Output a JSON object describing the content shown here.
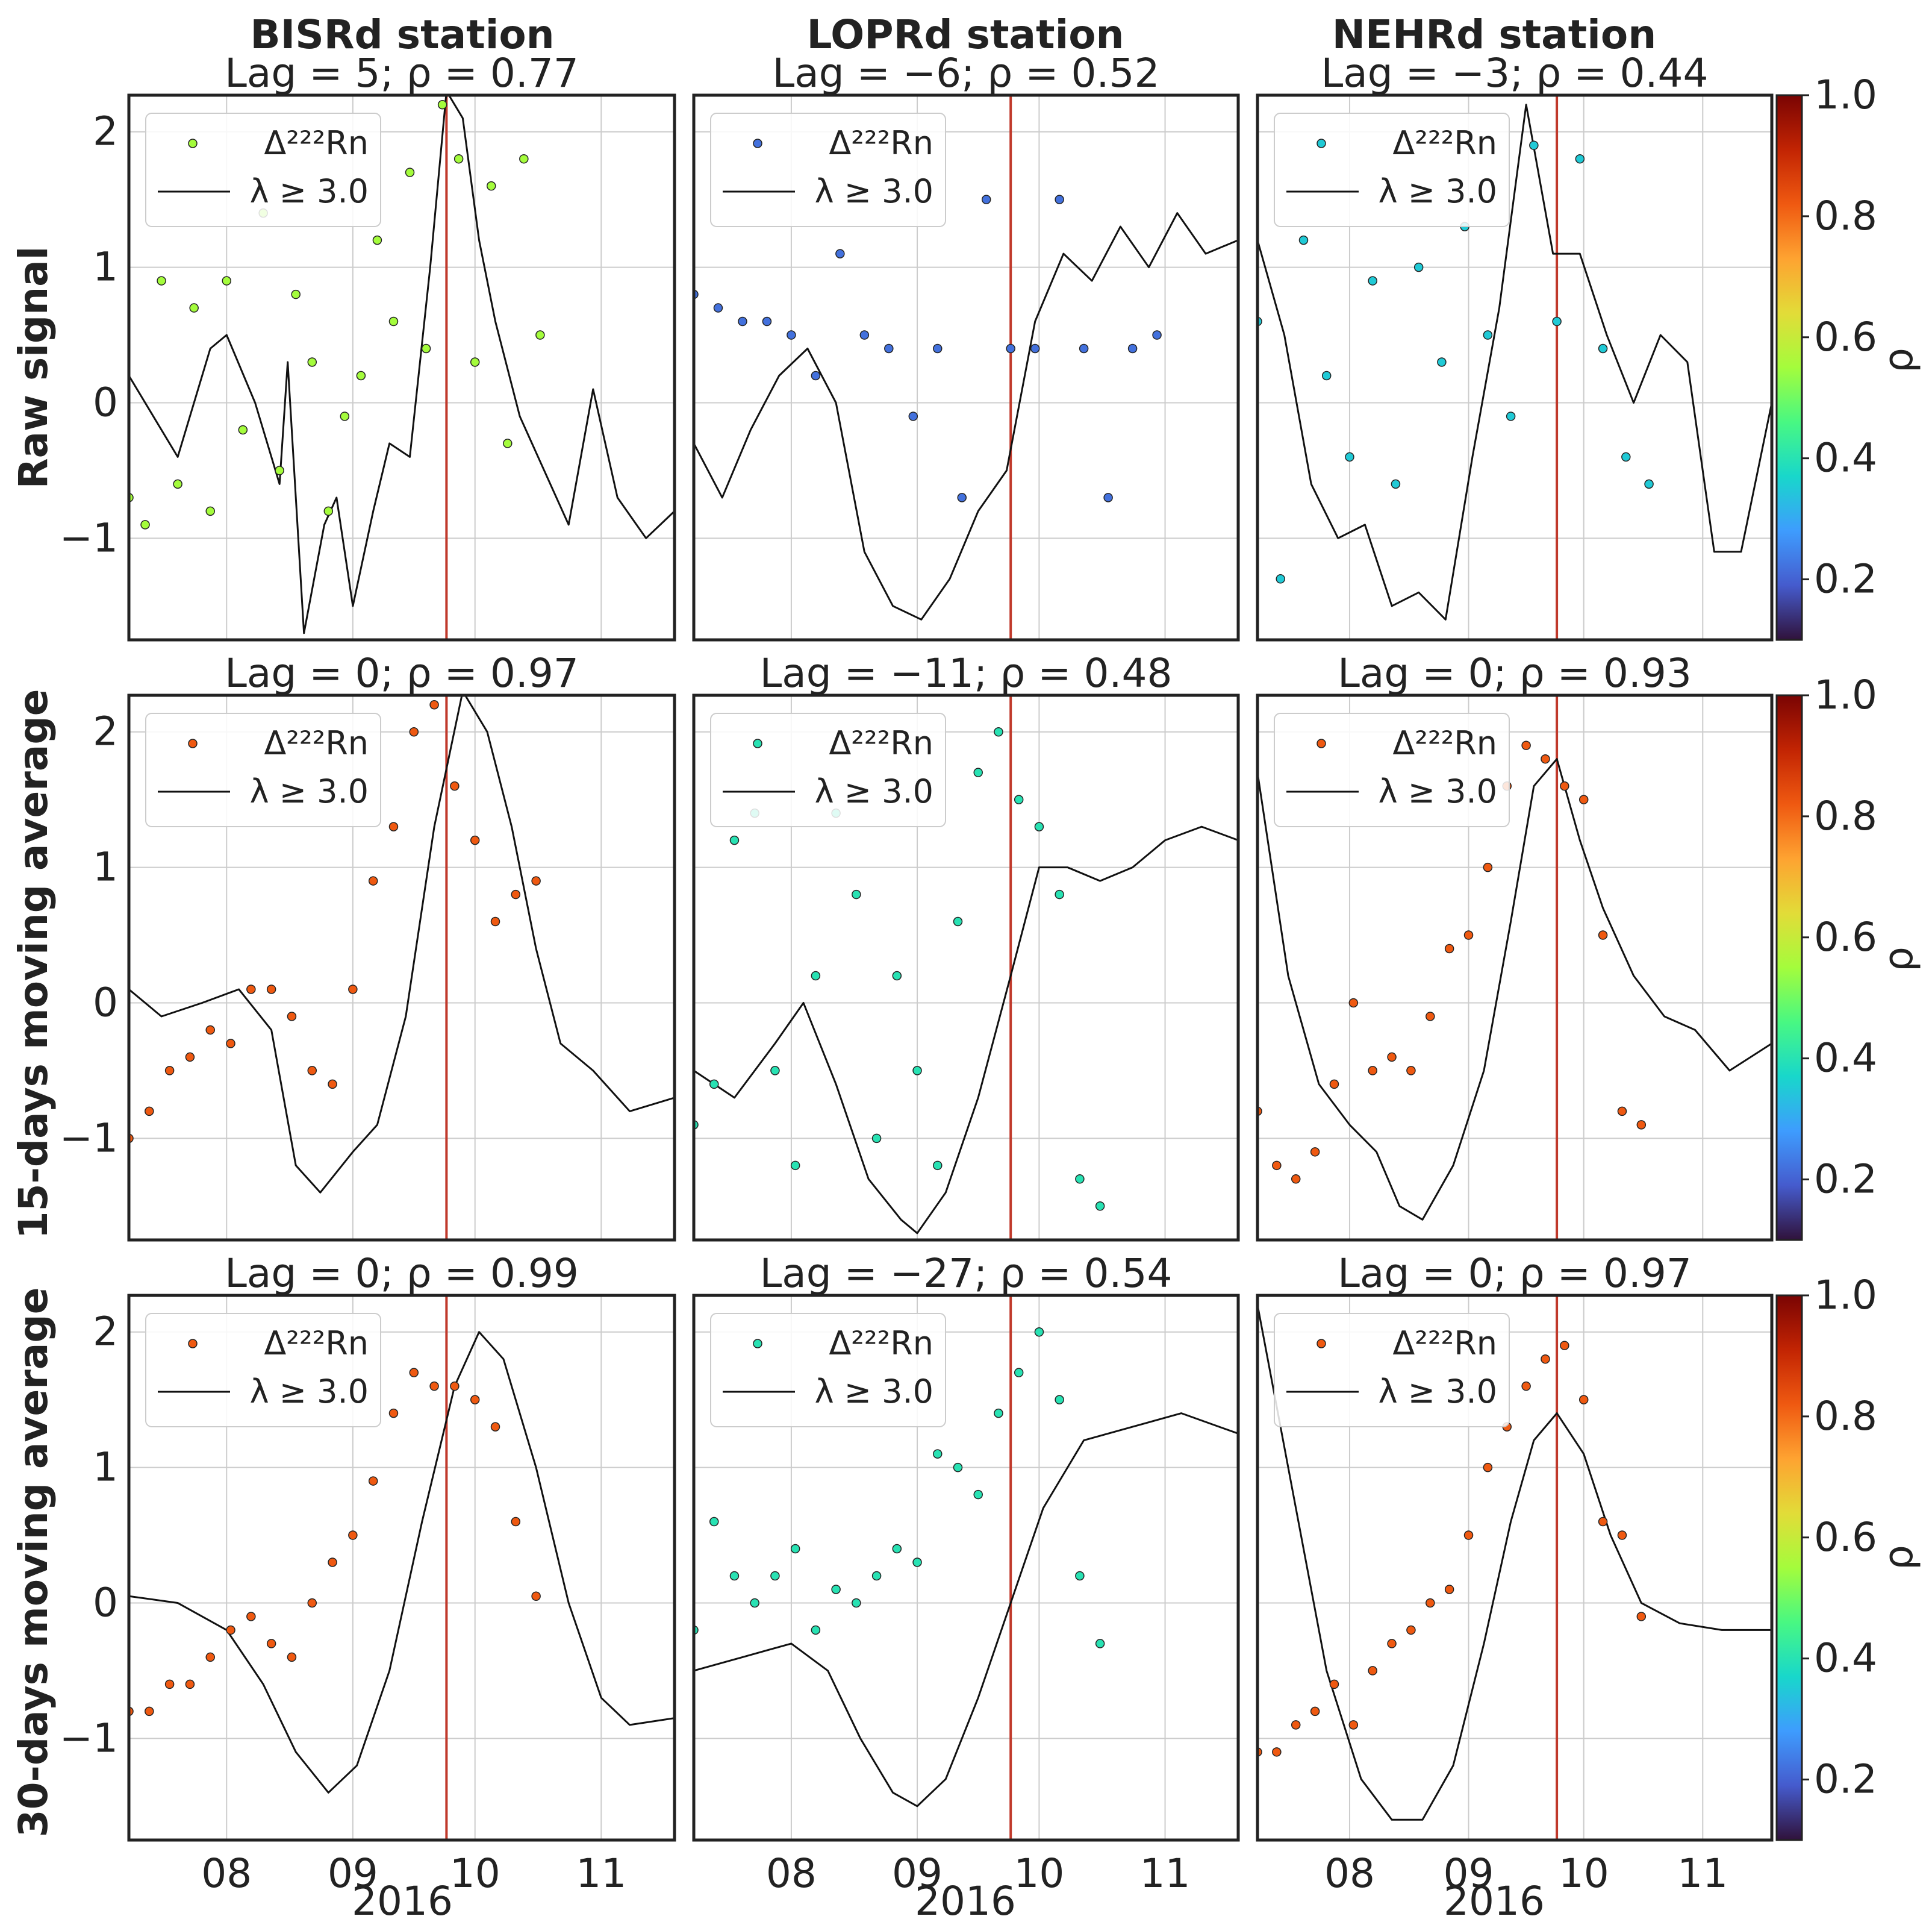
{
  "figure": {
    "station_titles": [
      "BISRd station",
      "LOPRd station",
      "NEHRd station"
    ],
    "row_labels": [
      "Raw signal",
      "15-days moving average",
      "30-days moving average"
    ],
    "x_year_label": "2016",
    "x_tick_labels": [
      "08",
      "09",
      "10",
      "11"
    ],
    "y_tick_labels": [
      "−1",
      "0",
      "1",
      "2"
    ],
    "legend": {
      "scatter_label": "Δ²²²Rn",
      "line_label": "λ ≥ 3.0"
    },
    "colorbar": {
      "label": "ρ",
      "ticks": [
        "0.2",
        "0.4",
        "0.6",
        "0.8",
        "1.0"
      ],
      "range": [
        0.1,
        1.0
      ],
      "colormap": "turbo"
    },
    "event_line_color": "#c0392b"
  },
  "chart_data": [
    {
      "type": "scatter",
      "panel": "raw-bisrd",
      "title": "Lag = 5; ρ = 0.77",
      "xlim": [
        "2016-07-08",
        "2016-11-19"
      ],
      "ylim": [
        -1.75,
        2.27
      ],
      "event_date": "2016-09-24",
      "line_series": {
        "name": "λ ≥ 3.0",
        "x": [
          "2016-07-08",
          "2016-07-20",
          "2016-07-28",
          "2016-08-01",
          "2016-08-08",
          "2016-08-14",
          "2016-08-16",
          "2016-08-20",
          "2016-08-25",
          "2016-08-28",
          "2016-09-01",
          "2016-09-06",
          "2016-09-10",
          "2016-09-15",
          "2016-09-20",
          "2016-09-24",
          "2016-09-28",
          "2016-10-02",
          "2016-10-06",
          "2016-10-12",
          "2016-10-18",
          "2016-10-24",
          "2016-10-30",
          "2016-11-05",
          "2016-11-12",
          "2016-11-19"
        ],
        "values": [
          0.2,
          -0.4,
          0.4,
          0.5,
          0.0,
          -0.6,
          0.3,
          -1.7,
          -0.9,
          -0.7,
          -1.5,
          -0.8,
          -0.3,
          -0.4,
          1.0,
          2.3,
          2.1,
          1.2,
          0.6,
          -0.1,
          -0.5,
          -0.9,
          0.1,
          -0.7,
          -1.0,
          -0.8
        ]
      },
      "scatter_series": {
        "name": "Δ²²²Rn",
        "rho": 0.55,
        "x": [
          "2016-07-08",
          "2016-07-12",
          "2016-07-16",
          "2016-07-20",
          "2016-07-24",
          "2016-07-28",
          "2016-08-01",
          "2016-08-05",
          "2016-08-10",
          "2016-08-14",
          "2016-08-18",
          "2016-08-22",
          "2016-08-26",
          "2016-08-30",
          "2016-09-03",
          "2016-09-07",
          "2016-09-11",
          "2016-09-15",
          "2016-09-19",
          "2016-09-23",
          "2016-09-27",
          "2016-10-01",
          "2016-10-05",
          "2016-10-09",
          "2016-10-13",
          "2016-10-17"
        ],
        "values": [
          -0.7,
          -0.9,
          0.9,
          -0.6,
          0.7,
          -0.8,
          0.9,
          -0.2,
          1.4,
          -0.5,
          0.8,
          0.3,
          -0.8,
          -0.1,
          0.2,
          1.2,
          0.6,
          1.7,
          0.4,
          2.2,
          1.8,
          0.3,
          1.6,
          -0.3,
          1.8,
          0.5
        ]
      }
    },
    {
      "type": "scatter",
      "panel": "raw-loprd",
      "title": "Lag = −6; ρ = 0.52",
      "xlim": [
        "2016-07-08",
        "2016-11-19"
      ],
      "ylim": [
        -1.75,
        2.27
      ],
      "event_date": "2016-09-24",
      "line_series": {
        "name": "λ ≥ 3.0",
        "x": [
          "2016-07-08",
          "2016-07-15",
          "2016-07-22",
          "2016-07-29",
          "2016-08-05",
          "2016-08-12",
          "2016-08-19",
          "2016-08-26",
          "2016-09-02",
          "2016-09-09",
          "2016-09-16",
          "2016-09-23",
          "2016-09-30",
          "2016-10-07",
          "2016-10-14",
          "2016-10-21",
          "2016-10-28",
          "2016-11-04",
          "2016-11-11",
          "2016-11-19"
        ],
        "values": [
          -0.3,
          -0.7,
          -0.2,
          0.2,
          0.4,
          0.0,
          -1.1,
          -1.5,
          -1.6,
          -1.3,
          -0.8,
          -0.5,
          0.6,
          1.1,
          0.9,
          1.3,
          1.0,
          1.4,
          1.1,
          1.2
        ]
      },
      "scatter_series": {
        "name": "Δ²²²Rn",
        "rho": 0.22,
        "x": [
          "2016-07-08",
          "2016-07-14",
          "2016-07-20",
          "2016-07-26",
          "2016-08-01",
          "2016-08-07",
          "2016-08-13",
          "2016-08-19",
          "2016-08-25",
          "2016-08-31",
          "2016-09-06",
          "2016-09-12",
          "2016-09-18",
          "2016-09-24",
          "2016-09-30",
          "2016-10-06",
          "2016-10-12",
          "2016-10-18",
          "2016-10-24",
          "2016-10-30"
        ],
        "values": [
          0.8,
          0.7,
          0.6,
          0.6,
          0.5,
          0.2,
          1.1,
          0.5,
          0.4,
          -0.1,
          0.4,
          -0.7,
          1.5,
          0.4,
          0.4,
          1.5,
          0.4,
          -0.7,
          0.4,
          0.5
        ]
      }
    },
    {
      "type": "scatter",
      "panel": "raw-nehrd",
      "title": "Lag = −3; ρ = 0.44",
      "xlim": [
        "2016-07-08",
        "2016-11-19"
      ],
      "ylim": [
        -1.75,
        2.27
      ],
      "event_date": "2016-09-24",
      "line_series": {
        "name": "λ ≥ 3.0",
        "x": [
          "2016-07-08",
          "2016-07-15",
          "2016-07-22",
          "2016-07-29",
          "2016-08-05",
          "2016-08-12",
          "2016-08-19",
          "2016-08-26",
          "2016-09-02",
          "2016-09-09",
          "2016-09-16",
          "2016-09-23",
          "2016-09-30",
          "2016-10-07",
          "2016-10-14",
          "2016-10-21",
          "2016-10-28",
          "2016-11-04",
          "2016-11-11",
          "2016-11-19"
        ],
        "values": [
          1.2,
          0.5,
          -0.6,
          -1.0,
          -0.9,
          -1.5,
          -1.4,
          -1.6,
          -0.4,
          0.7,
          2.2,
          1.1,
          1.1,
          0.5,
          0.0,
          0.5,
          0.3,
          -1.1,
          -1.1,
          0.0
        ]
      },
      "scatter_series": {
        "name": "Δ²²²Rn",
        "rho": 0.35,
        "x": [
          "2016-07-08",
          "2016-07-14",
          "2016-07-20",
          "2016-07-26",
          "2016-08-01",
          "2016-08-07",
          "2016-08-13",
          "2016-08-19",
          "2016-08-25",
          "2016-08-31",
          "2016-09-06",
          "2016-09-12",
          "2016-09-18",
          "2016-09-24",
          "2016-09-30",
          "2016-10-06",
          "2016-10-12",
          "2016-10-18"
        ],
        "values": [
          0.6,
          -1.3,
          1.2,
          0.2,
          -0.4,
          0.9,
          -0.6,
          1.0,
          0.3,
          1.3,
          0.5,
          -0.1,
          1.9,
          0.6,
          1.8,
          0.4,
          -0.4,
          -0.6
        ]
      }
    },
    {
      "type": "scatter",
      "panel": "ma15-bisrd",
      "title": "Lag = 0; ρ = 0.97",
      "xlim": [
        "2016-07-08",
        "2016-11-19"
      ],
      "ylim": [
        -1.75,
        2.27
      ],
      "event_date": "2016-09-24",
      "line_series": {
        "name": "λ ≥ 3.0",
        "x": [
          "2016-07-08",
          "2016-07-16",
          "2016-07-26",
          "2016-08-04",
          "2016-08-12",
          "2016-08-18",
          "2016-08-24",
          "2016-09-01",
          "2016-09-07",
          "2016-09-14",
          "2016-09-21",
          "2016-09-28",
          "2016-10-04",
          "2016-10-10",
          "2016-10-16",
          "2016-10-22",
          "2016-10-30",
          "2016-11-08",
          "2016-11-19"
        ],
        "values": [
          0.1,
          -0.1,
          0.0,
          0.1,
          -0.2,
          -1.2,
          -1.4,
          -1.1,
          -0.9,
          -0.1,
          1.3,
          2.3,
          2.0,
          1.3,
          0.4,
          -0.3,
          -0.5,
          -0.8,
          -0.7
        ]
      },
      "scatter_series": {
        "name": "Δ²²²Rn",
        "rho": 0.82,
        "x": [
          "2016-07-08",
          "2016-07-13",
          "2016-07-18",
          "2016-07-23",
          "2016-07-28",
          "2016-08-02",
          "2016-08-07",
          "2016-08-12",
          "2016-08-17",
          "2016-08-22",
          "2016-08-27",
          "2016-09-01",
          "2016-09-06",
          "2016-09-11",
          "2016-09-16",
          "2016-09-21",
          "2016-09-26",
          "2016-10-01",
          "2016-10-06",
          "2016-10-11",
          "2016-10-16"
        ],
        "values": [
          -1.0,
          -0.8,
          -0.5,
          -0.4,
          -0.2,
          -0.3,
          0.1,
          0.1,
          -0.1,
          -0.5,
          -0.6,
          0.1,
          0.9,
          1.3,
          2.0,
          2.2,
          1.6,
          1.2,
          0.6,
          0.8,
          0.9
        ]
      }
    },
    {
      "type": "scatter",
      "panel": "ma15-loprd",
      "title": "Lag = −11; ρ = 0.48",
      "xlim": [
        "2016-07-08",
        "2016-11-19"
      ],
      "ylim": [
        -1.75,
        2.27
      ],
      "event_date": "2016-09-24",
      "line_series": {
        "name": "λ ≥ 3.0",
        "x": [
          "2016-07-08",
          "2016-07-18",
          "2016-07-28",
          "2016-08-04",
          "2016-08-12",
          "2016-08-20",
          "2016-08-28",
          "2016-09-01",
          "2016-09-08",
          "2016-09-16",
          "2016-09-24",
          "2016-10-01",
          "2016-10-08",
          "2016-10-16",
          "2016-10-24",
          "2016-11-01",
          "2016-11-10",
          "2016-11-19"
        ],
        "values": [
          -0.5,
          -0.7,
          -0.3,
          0.0,
          -0.6,
          -1.3,
          -1.6,
          -1.7,
          -1.4,
          -0.7,
          0.2,
          1.0,
          1.0,
          0.9,
          1.0,
          1.2,
          1.3,
          1.2
        ]
      },
      "scatter_series": {
        "name": "Δ²²²Rn",
        "rho": 0.4,
        "x": [
          "2016-07-08",
          "2016-07-13",
          "2016-07-18",
          "2016-07-23",
          "2016-07-28",
          "2016-08-02",
          "2016-08-07",
          "2016-08-12",
          "2016-08-17",
          "2016-08-22",
          "2016-08-27",
          "2016-09-01",
          "2016-09-06",
          "2016-09-11",
          "2016-09-16",
          "2016-09-21",
          "2016-09-26",
          "2016-10-01",
          "2016-10-06",
          "2016-10-11",
          "2016-10-16"
        ],
        "values": [
          -0.9,
          -0.6,
          1.2,
          1.4,
          -0.5,
          -1.2,
          0.2,
          1.4,
          0.8,
          -1.0,
          0.2,
          -0.5,
          -1.2,
          0.6,
          1.7,
          2.0,
          1.5,
          1.3,
          0.8,
          -1.3,
          -1.5
        ]
      }
    },
    {
      "type": "scatter",
      "panel": "ma15-nehrd",
      "title": "Lag = 0; ρ = 0.93",
      "xlim": [
        "2016-07-08",
        "2016-11-19"
      ],
      "ylim": [
        -1.75,
        2.27
      ],
      "event_date": "2016-09-24",
      "line_series": {
        "name": "λ ≥ 3.0",
        "x": [
          "2016-07-08",
          "2016-07-16",
          "2016-07-24",
          "2016-08-01",
          "2016-08-08",
          "2016-08-14",
          "2016-08-20",
          "2016-08-28",
          "2016-09-05",
          "2016-09-12",
          "2016-09-18",
          "2016-09-24",
          "2016-09-30",
          "2016-10-06",
          "2016-10-14",
          "2016-10-22",
          "2016-10-30",
          "2016-11-08",
          "2016-11-19"
        ],
        "values": [
          1.7,
          0.2,
          -0.6,
          -0.9,
          -1.1,
          -1.5,
          -1.6,
          -1.2,
          -0.5,
          0.6,
          1.6,
          1.8,
          1.2,
          0.7,
          0.2,
          -0.1,
          -0.2,
          -0.5,
          -0.3
        ]
      },
      "scatter_series": {
        "name": "Δ²²²Rn",
        "rho": 0.82,
        "x": [
          "2016-07-08",
          "2016-07-13",
          "2016-07-18",
          "2016-07-23",
          "2016-07-28",
          "2016-08-02",
          "2016-08-07",
          "2016-08-12",
          "2016-08-17",
          "2016-08-22",
          "2016-08-27",
          "2016-09-01",
          "2016-09-06",
          "2016-09-11",
          "2016-09-16",
          "2016-09-21",
          "2016-09-26",
          "2016-10-01",
          "2016-10-06",
          "2016-10-11",
          "2016-10-16"
        ],
        "values": [
          -0.8,
          -1.2,
          -1.3,
          -1.1,
          -0.6,
          0.0,
          -0.5,
          -0.4,
          -0.5,
          -0.1,
          0.4,
          0.5,
          1.0,
          1.6,
          1.9,
          1.8,
          1.6,
          1.5,
          0.5,
          -0.8,
          -0.9
        ]
      }
    },
    {
      "type": "scatter",
      "panel": "ma30-bisrd",
      "title": "Lag = 0; ρ = 0.99",
      "xlim": [
        "2016-07-08",
        "2016-11-19"
      ],
      "ylim": [
        -1.75,
        2.27
      ],
      "event_date": "2016-09-24",
      "line_series": {
        "name": "λ ≥ 3.0",
        "x": [
          "2016-07-08",
          "2016-07-20",
          "2016-08-01",
          "2016-08-10",
          "2016-08-18",
          "2016-08-26",
          "2016-09-02",
          "2016-09-10",
          "2016-09-18",
          "2016-09-26",
          "2016-10-02",
          "2016-10-08",
          "2016-10-16",
          "2016-10-24",
          "2016-11-01",
          "2016-11-08",
          "2016-11-19"
        ],
        "values": [
          0.05,
          0.0,
          -0.2,
          -0.6,
          -1.1,
          -1.4,
          -1.2,
          -0.5,
          0.6,
          1.6,
          2.0,
          1.8,
          1.0,
          0.0,
          -0.7,
          -0.9,
          -0.85
        ]
      },
      "scatter_series": {
        "name": "Δ²²²Rn",
        "rho": 0.82,
        "x": [
          "2016-07-08",
          "2016-07-13",
          "2016-07-18",
          "2016-07-23",
          "2016-07-28",
          "2016-08-02",
          "2016-08-07",
          "2016-08-12",
          "2016-08-17",
          "2016-08-22",
          "2016-08-27",
          "2016-09-01",
          "2016-09-06",
          "2016-09-11",
          "2016-09-16",
          "2016-09-21",
          "2016-09-26",
          "2016-10-01",
          "2016-10-06",
          "2016-10-11",
          "2016-10-16"
        ],
        "values": [
          -0.8,
          -0.8,
          -0.6,
          -0.6,
          -0.4,
          -0.2,
          -0.1,
          -0.3,
          -0.4,
          0.0,
          0.3,
          0.5,
          0.9,
          1.4,
          1.7,
          1.6,
          1.6,
          1.5,
          1.3,
          0.6,
          0.05
        ]
      }
    },
    {
      "type": "scatter",
      "panel": "ma30-loprd",
      "title": "Lag = −27; ρ = 0.54",
      "xlim": [
        "2016-07-08",
        "2016-11-19"
      ],
      "ylim": [
        -1.75,
        2.27
      ],
      "event_date": "2016-09-24",
      "line_series": {
        "name": "λ ≥ 3.0",
        "x": [
          "2016-07-08",
          "2016-07-20",
          "2016-08-01",
          "2016-08-10",
          "2016-08-18",
          "2016-08-26",
          "2016-09-01",
          "2016-09-08",
          "2016-09-16",
          "2016-09-24",
          "2016-10-02",
          "2016-10-12",
          "2016-10-24",
          "2016-11-05",
          "2016-11-19"
        ],
        "values": [
          -0.5,
          -0.4,
          -0.3,
          -0.5,
          -1.0,
          -1.4,
          -1.5,
          -1.3,
          -0.7,
          0.0,
          0.7,
          1.2,
          1.3,
          1.4,
          1.25
        ]
      },
      "scatter_series": {
        "name": "Δ²²²Rn",
        "rho": 0.4,
        "x": [
          "2016-07-08",
          "2016-07-13",
          "2016-07-18",
          "2016-07-23",
          "2016-07-28",
          "2016-08-02",
          "2016-08-07",
          "2016-08-12",
          "2016-08-17",
          "2016-08-22",
          "2016-08-27",
          "2016-09-01",
          "2016-09-06",
          "2016-09-11",
          "2016-09-16",
          "2016-09-21",
          "2016-09-26",
          "2016-10-01",
          "2016-10-06",
          "2016-10-11",
          "2016-10-16"
        ],
        "values": [
          -0.2,
          0.6,
          0.2,
          0.0,
          0.2,
          0.4,
          -0.2,
          0.1,
          0.0,
          0.2,
          0.4,
          0.3,
          1.1,
          1.0,
          0.8,
          1.4,
          1.7,
          2.0,
          1.5,
          0.2,
          -0.3
        ]
      }
    },
    {
      "type": "scatter",
      "panel": "ma30-nehrd",
      "title": "Lag = 0; ρ = 0.97",
      "xlim": [
        "2016-07-08",
        "2016-11-19"
      ],
      "ylim": [
        -1.75,
        2.27
      ],
      "event_date": "2016-09-24",
      "line_series": {
        "name": "λ ≥ 3.0",
        "x": [
          "2016-07-08",
          "2016-07-16",
          "2016-07-26",
          "2016-08-04",
          "2016-08-12",
          "2016-08-20",
          "2016-08-28",
          "2016-09-05",
          "2016-09-12",
          "2016-09-18",
          "2016-09-24",
          "2016-10-01",
          "2016-10-08",
          "2016-10-16",
          "2016-10-26",
          "2016-11-06",
          "2016-11-19"
        ],
        "values": [
          2.2,
          1.0,
          -0.5,
          -1.3,
          -1.6,
          -1.6,
          -1.2,
          -0.3,
          0.6,
          1.2,
          1.4,
          1.1,
          0.5,
          0.0,
          -0.15,
          -0.2,
          -0.2
        ]
      },
      "scatter_series": {
        "name": "Δ²²²Rn",
        "rho": 0.82,
        "x": [
          "2016-07-08",
          "2016-07-13",
          "2016-07-18",
          "2016-07-23",
          "2016-07-28",
          "2016-08-02",
          "2016-08-07",
          "2016-08-12",
          "2016-08-17",
          "2016-08-22",
          "2016-08-27",
          "2016-09-01",
          "2016-09-06",
          "2016-09-11",
          "2016-09-16",
          "2016-09-21",
          "2016-09-26",
          "2016-10-01",
          "2016-10-06",
          "2016-10-11",
          "2016-10-16"
        ],
        "values": [
          -1.1,
          -1.1,
          -0.9,
          -0.8,
          -0.6,
          -0.9,
          -0.5,
          -0.3,
          -0.2,
          0.0,
          0.1,
          0.5,
          1.0,
          1.3,
          1.6,
          1.8,
          1.9,
          1.5,
          0.6,
          0.5,
          -0.1
        ]
      }
    }
  ]
}
